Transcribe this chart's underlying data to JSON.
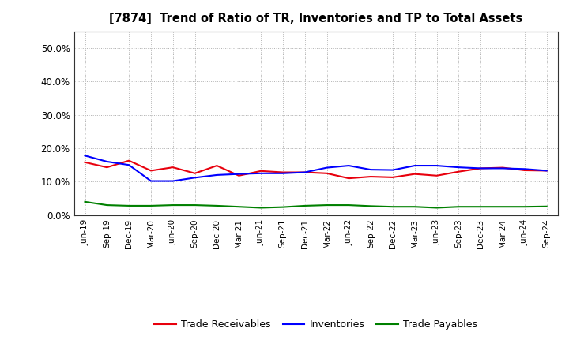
{
  "title": "[7874]  Trend of Ratio of TR, Inventories and TP to Total Assets",
  "x_labels": [
    "Jun-19",
    "Sep-19",
    "Dec-19",
    "Mar-20",
    "Jun-20",
    "Sep-20",
    "Dec-20",
    "Mar-21",
    "Jun-21",
    "Sep-21",
    "Dec-21",
    "Mar-22",
    "Jun-22",
    "Sep-22",
    "Dec-22",
    "Mar-23",
    "Jun-23",
    "Sep-23",
    "Dec-23",
    "Mar-24",
    "Jun-24",
    "Sep-24"
  ],
  "trade_receivables": [
    0.158,
    0.143,
    0.163,
    0.133,
    0.143,
    0.125,
    0.148,
    0.118,
    0.132,
    0.128,
    0.128,
    0.125,
    0.11,
    0.115,
    0.113,
    0.123,
    0.118,
    0.13,
    0.14,
    0.142,
    0.134,
    0.133
  ],
  "inventories": [
    0.178,
    0.16,
    0.15,
    0.102,
    0.102,
    0.112,
    0.12,
    0.123,
    0.125,
    0.125,
    0.128,
    0.142,
    0.148,
    0.136,
    0.135,
    0.148,
    0.148,
    0.143,
    0.14,
    0.14,
    0.138,
    0.133
  ],
  "trade_payables": [
    0.04,
    0.03,
    0.028,
    0.028,
    0.03,
    0.03,
    0.028,
    0.025,
    0.022,
    0.024,
    0.028,
    0.03,
    0.03,
    0.027,
    0.025,
    0.025,
    0.022,
    0.025,
    0.025,
    0.025,
    0.025,
    0.026
  ],
  "line_color_tr": "#e8000d",
  "line_color_inv": "#0000ff",
  "line_color_tp": "#008000",
  "background_color": "#ffffff",
  "grid_color": "#b0b0b0",
  "ylim": [
    0.0,
    0.55
  ],
  "yticks": [
    0.0,
    0.1,
    0.2,
    0.3,
    0.4,
    0.5
  ],
  "legend_labels": [
    "Trade Receivables",
    "Inventories",
    "Trade Payables"
  ]
}
